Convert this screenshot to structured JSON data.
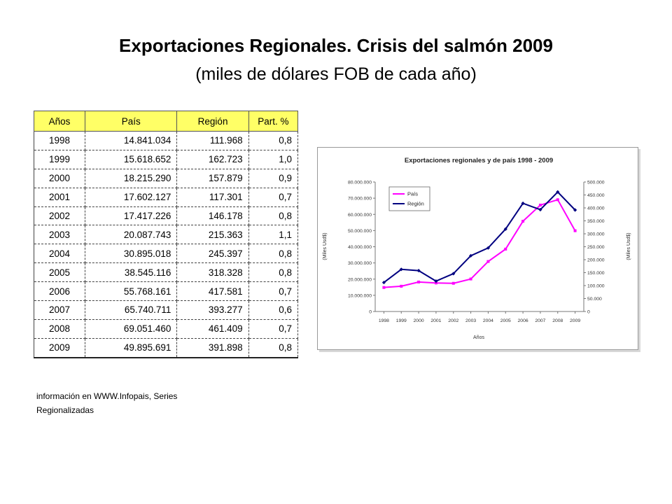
{
  "title": "Exportaciones Regionales. Crisis del salmón  2009",
  "subtitle": "(miles de dólares FOB de cada año)",
  "table": {
    "headers": [
      "Años",
      "País",
      "Región",
      "Part. %"
    ],
    "rows": [
      [
        "1998",
        "14.841.034",
        "111.968",
        "0,8"
      ],
      [
        "1999",
        "15.618.652",
        "162.723",
        "1,0"
      ],
      [
        "2000",
        "18.215.290",
        "157.879",
        "0,9"
      ],
      [
        "2001",
        "17.602.127",
        "117.301",
        "0,7"
      ],
      [
        "2002",
        "17.417.226",
        "146.178",
        "0,8"
      ],
      [
        "2003",
        "20.087.743",
        "215.363",
        "1,1"
      ],
      [
        "2004",
        "30.895.018",
        "245.397",
        "0,8"
      ],
      [
        "2005",
        "38.545.116",
        "318.328",
        "0,8"
      ],
      [
        "2006",
        "55.768.161",
        "417.581",
        "0,7"
      ],
      [
        "2007",
        "65.740.711",
        "393.277",
        "0,6"
      ],
      [
        "2008",
        "69.051.460",
        "461.409",
        "0,7"
      ],
      [
        "2009",
        "49.895.691",
        "391.898",
        "0,8"
      ]
    ]
  },
  "source": {
    "line1": "información en WWW.Infopais, Series",
    "line2": "Regionalizadas"
  },
  "chart_data": {
    "type": "line",
    "title": "Exportaciones regionales y de país 1998 - 2009",
    "xlabel": "Años",
    "ylabel_left": "(Miles Usd$)",
    "ylabel_right": "(Miles Usd$)",
    "categories": [
      "1998",
      "1999",
      "2000",
      "2001",
      "2002",
      "2003",
      "2004",
      "2005",
      "2006",
      "2007",
      "2008",
      "2009"
    ],
    "ylim_left": [
      0,
      80000000
    ],
    "ylim_right": [
      0,
      500000
    ],
    "y_ticks_left": [
      "0",
      "10.000.000",
      "20.000.000",
      "30.000.000",
      "40.000.000",
      "50.000.000",
      "60.000.000",
      "70.000.000",
      "80.000.000"
    ],
    "y_ticks_right": [
      "0",
      "50.000",
      "100.000",
      "150.000",
      "200.000",
      "250.000",
      "300.000",
      "350.000",
      "400.000",
      "450.000",
      "500.000"
    ],
    "legend_position": "top-left",
    "series": [
      {
        "name": "País",
        "axis": "left",
        "color": "#ff00ff",
        "values": [
          14841034,
          15618652,
          18215290,
          17602127,
          17417226,
          20087743,
          30895018,
          38545116,
          55768161,
          65740711,
          69051460,
          49895691
        ]
      },
      {
        "name": "Región",
        "axis": "right",
        "color": "#000080",
        "values": [
          111968,
          162723,
          157879,
          117301,
          146178,
          215363,
          245397,
          318328,
          417581,
          393277,
          461409,
          391898
        ]
      }
    ]
  }
}
